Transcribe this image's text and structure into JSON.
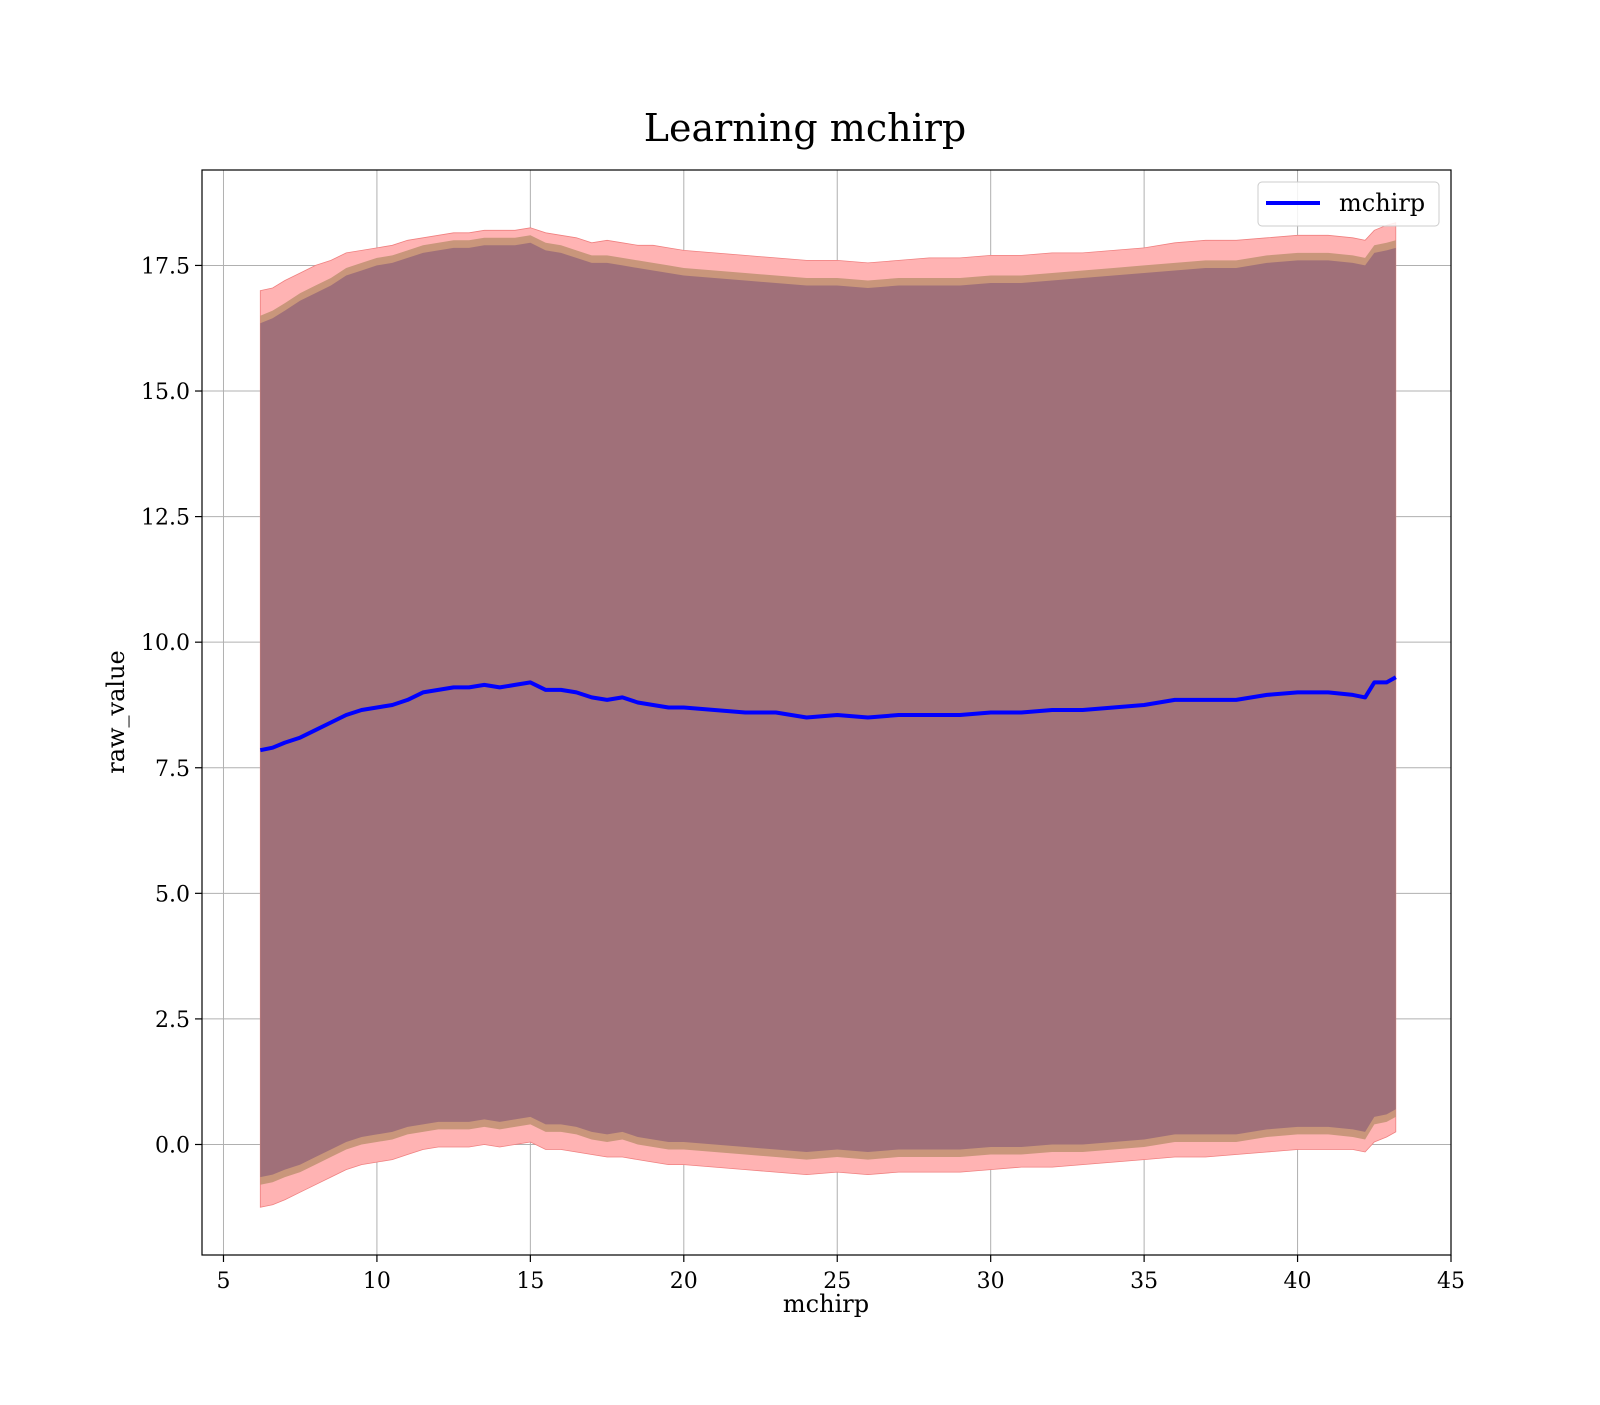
{
  "chart_data": {
    "type": "line",
    "title": "Learning mchirp",
    "xlabel": "mchirp",
    "ylabel": "raw_value",
    "xlim": [
      4.3,
      45
    ],
    "ylim": [
      -2.2,
      19.4
    ],
    "xticks": [
      5,
      10,
      15,
      20,
      25,
      30,
      35,
      40,
      45
    ],
    "xtick_labels": [
      "5",
      "10",
      "15",
      "20",
      "25",
      "30",
      "35",
      "40",
      "45"
    ],
    "yticks": [
      0,
      2.5,
      5,
      7.5,
      10,
      12.5,
      15,
      17.5
    ],
    "ytick_labels": [
      "0.0",
      "2.5",
      "5.0",
      "7.5",
      "10.0",
      "12.5",
      "15.0",
      "17.5"
    ],
    "grid": true,
    "legend_position": "top-right",
    "colors": {
      "line": "#0000ff",
      "band_outer": "#ffb3b3",
      "band_middle": "#c9967b",
      "band_inner": "#a07079",
      "grid": "#b0b0b0"
    },
    "series": [
      {
        "name": "mchirp",
        "x": [
          6.2,
          6.6,
          7.0,
          7.5,
          8.0,
          8.5,
          9.0,
          9.5,
          10.0,
          10.5,
          11.0,
          11.5,
          12.0,
          12.5,
          13.0,
          13.5,
          14.0,
          14.5,
          15.0,
          15.5,
          16.0,
          16.5,
          17.0,
          17.5,
          18.0,
          18.5,
          19.0,
          19.5,
          20.0,
          21.0,
          22.0,
          23.0,
          24.0,
          25.0,
          26.0,
          27.0,
          28.0,
          29.0,
          30.0,
          31.0,
          32.0,
          33.0,
          34.0,
          35.0,
          36.0,
          37.0,
          38.0,
          39.0,
          40.0,
          41.0,
          41.8,
          42.2,
          42.5,
          42.9,
          43.2
        ],
        "values": [
          7.85,
          7.9,
          8.0,
          8.1,
          8.25,
          8.4,
          8.55,
          8.65,
          8.7,
          8.75,
          8.85,
          9.0,
          9.05,
          9.1,
          9.1,
          9.15,
          9.1,
          9.15,
          9.2,
          9.05,
          9.05,
          9.0,
          8.9,
          8.85,
          8.9,
          8.8,
          8.75,
          8.7,
          8.7,
          8.65,
          8.6,
          8.6,
          8.5,
          8.55,
          8.5,
          8.55,
          8.55,
          8.55,
          8.6,
          8.6,
          8.65,
          8.65,
          8.7,
          8.75,
          8.85,
          8.85,
          8.85,
          8.95,
          9.0,
          9.0,
          8.95,
          8.9,
          9.2,
          9.2,
          9.3
        ],
        "band_inner_upper": [
          16.35,
          16.45,
          16.6,
          16.8,
          16.95,
          17.1,
          17.3,
          17.4,
          17.5,
          17.55,
          17.65,
          17.75,
          17.8,
          17.85,
          17.85,
          17.9,
          17.9,
          17.9,
          17.95,
          17.8,
          17.75,
          17.65,
          17.55,
          17.55,
          17.5,
          17.45,
          17.4,
          17.35,
          17.3,
          17.25,
          17.2,
          17.15,
          17.1,
          17.1,
          17.05,
          17.1,
          17.1,
          17.1,
          17.15,
          17.15,
          17.2,
          17.25,
          17.3,
          17.35,
          17.4,
          17.45,
          17.45,
          17.55,
          17.6,
          17.6,
          17.55,
          17.5,
          17.75,
          17.8,
          17.85
        ],
        "band_inner_lower": [
          -0.65,
          -0.6,
          -0.5,
          -0.4,
          -0.25,
          -0.1,
          0.05,
          0.15,
          0.2,
          0.25,
          0.35,
          0.4,
          0.45,
          0.45,
          0.45,
          0.5,
          0.45,
          0.5,
          0.55,
          0.4,
          0.4,
          0.35,
          0.25,
          0.2,
          0.25,
          0.15,
          0.1,
          0.05,
          0.05,
          0.0,
          -0.05,
          -0.1,
          -0.15,
          -0.1,
          -0.15,
          -0.1,
          -0.1,
          -0.1,
          -0.05,
          -0.05,
          0.0,
          0.0,
          0.05,
          0.1,
          0.2,
          0.2,
          0.2,
          0.3,
          0.35,
          0.35,
          0.3,
          0.25,
          0.55,
          0.6,
          0.7
        ],
        "band_middle_upper": [
          16.5,
          16.6,
          16.75,
          16.95,
          17.1,
          17.25,
          17.45,
          17.55,
          17.65,
          17.7,
          17.8,
          17.9,
          17.95,
          18.0,
          18.0,
          18.05,
          18.05,
          18.05,
          18.1,
          17.95,
          17.9,
          17.8,
          17.7,
          17.7,
          17.65,
          17.6,
          17.55,
          17.5,
          17.45,
          17.4,
          17.35,
          17.3,
          17.25,
          17.25,
          17.2,
          17.25,
          17.25,
          17.25,
          17.3,
          17.3,
          17.35,
          17.4,
          17.45,
          17.5,
          17.55,
          17.6,
          17.6,
          17.7,
          17.75,
          17.75,
          17.7,
          17.65,
          17.9,
          17.95,
          18.0
        ],
        "band_middle_lower": [
          -0.8,
          -0.75,
          -0.65,
          -0.55,
          -0.4,
          -0.25,
          -0.1,
          0.0,
          0.05,
          0.1,
          0.2,
          0.25,
          0.3,
          0.3,
          0.3,
          0.35,
          0.3,
          0.35,
          0.4,
          0.25,
          0.25,
          0.2,
          0.1,
          0.05,
          0.1,
          0.0,
          -0.05,
          -0.1,
          -0.1,
          -0.15,
          -0.2,
          -0.25,
          -0.3,
          -0.25,
          -0.3,
          -0.25,
          -0.25,
          -0.25,
          -0.2,
          -0.2,
          -0.15,
          -0.15,
          -0.1,
          -0.05,
          0.05,
          0.05,
          0.05,
          0.15,
          0.2,
          0.2,
          0.15,
          0.1,
          0.4,
          0.45,
          0.55
        ],
        "band_outer_upper": [
          17.0,
          17.05,
          17.2,
          17.35,
          17.5,
          17.6,
          17.75,
          17.8,
          17.85,
          17.9,
          18.0,
          18.05,
          18.1,
          18.15,
          18.15,
          18.2,
          18.2,
          18.2,
          18.25,
          18.15,
          18.1,
          18.05,
          17.95,
          18.0,
          17.95,
          17.9,
          17.9,
          17.85,
          17.8,
          17.75,
          17.7,
          17.65,
          17.6,
          17.6,
          17.55,
          17.6,
          17.65,
          17.65,
          17.7,
          17.7,
          17.75,
          17.75,
          17.8,
          17.85,
          17.95,
          18.0,
          18.0,
          18.05,
          18.1,
          18.1,
          18.05,
          18.0,
          18.2,
          18.3,
          18.35
        ],
        "band_outer_lower": [
          -1.25,
          -1.2,
          -1.1,
          -0.95,
          -0.8,
          -0.65,
          -0.5,
          -0.4,
          -0.35,
          -0.3,
          -0.2,
          -0.1,
          -0.05,
          -0.05,
          -0.05,
          0.0,
          -0.05,
          0.0,
          0.05,
          -0.1,
          -0.1,
          -0.15,
          -0.2,
          -0.25,
          -0.25,
          -0.3,
          -0.35,
          -0.4,
          -0.4,
          -0.45,
          -0.5,
          -0.55,
          -0.6,
          -0.55,
          -0.6,
          -0.55,
          -0.55,
          -0.55,
          -0.5,
          -0.45,
          -0.45,
          -0.4,
          -0.35,
          -0.3,
          -0.25,
          -0.25,
          -0.2,
          -0.15,
          -0.1,
          -0.1,
          -0.1,
          -0.15,
          0.05,
          0.15,
          0.25
        ]
      }
    ]
  }
}
